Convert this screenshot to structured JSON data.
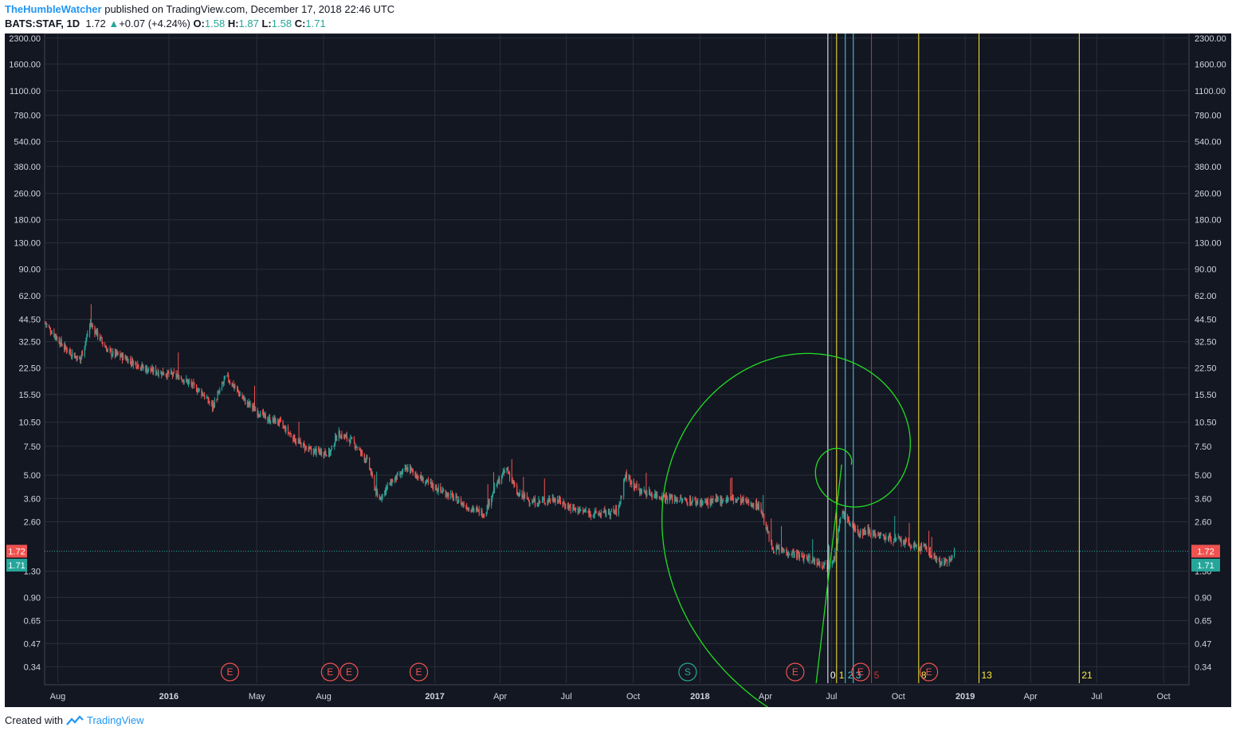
{
  "header": {
    "author": "TheHumbleWatcher",
    "published": "published on TradingView.com, December 17, 2018 22:46 UTC",
    "symbol": "BATS:STAF, 1D",
    "last": "1.72",
    "change": "+0.07 (+4.24%)",
    "o_label": "O:",
    "o_value": "1.58",
    "h_label": "H:",
    "h_value": "1.87",
    "l_label": "L:",
    "l_value": "1.58",
    "c_label": "C:",
    "c_value": "1.71"
  },
  "footer": {
    "created_with": "Created with",
    "brand": "TradingView"
  },
  "colors": {
    "background": "#131722",
    "grid": "#2a2e39",
    "up": "#26a69a",
    "down": "#ef5350",
    "spiral": "#22dd22",
    "fib_white": "#ffffff",
    "fib_yellow": "#ffeb3b",
    "fib_cyan": "#4dd0e1",
    "fib_red": "#d32f2f",
    "axis_text": "#d1d4dc",
    "event": "#ef5350",
    "split": "#26a69a"
  },
  "chart_data": {
    "type": "candlestick",
    "symbol": "BATS:STAF",
    "interval": "1D",
    "y_scale": "log",
    "ylim": [
      0.27,
      2400
    ],
    "y_ticks": [
      "2300.00",
      "1600.00",
      "1100.00",
      "780.00",
      "540.00",
      "380.00",
      "260.00",
      "180.00",
      "130.00",
      "90.00",
      "62.00",
      "44.50",
      "32.50",
      "22.50",
      "15.50",
      "10.50",
      "7.50",
      "5.00",
      "3.60",
      "2.60",
      "1.30",
      "0.90",
      "0.65",
      "0.47",
      "0.34"
    ],
    "x_range": [
      "2015-07-14",
      "2019-11-05"
    ],
    "x_ticks": [
      {
        "label": "Aug",
        "date": "2015-08-01",
        "bold": false
      },
      {
        "label": "2016",
        "date": "2016-01-01",
        "bold": true
      },
      {
        "label": "May",
        "date": "2016-05-01",
        "bold": false
      },
      {
        "label": "Aug",
        "date": "2016-08-01",
        "bold": false
      },
      {
        "label": "2017",
        "date": "2017-01-01",
        "bold": true
      },
      {
        "label": "Apr",
        "date": "2017-04-01",
        "bold": false
      },
      {
        "label": "Jul",
        "date": "2017-07-01",
        "bold": false
      },
      {
        "label": "Oct",
        "date": "2017-10-01",
        "bold": false
      },
      {
        "label": "2018",
        "date": "2018-01-01",
        "bold": true
      },
      {
        "label": "Apr",
        "date": "2018-04-01",
        "bold": false
      },
      {
        "label": "Jul",
        "date": "2018-07-01",
        "bold": false
      },
      {
        "label": "Oct",
        "date": "2018-10-01",
        "bold": false
      },
      {
        "label": "2019",
        "date": "2019-01-01",
        "bold": true
      },
      {
        "label": "Apr",
        "date": "2019-04-01",
        "bold": false
      },
      {
        "label": "Jul",
        "date": "2019-07-01",
        "bold": false
      },
      {
        "label": "Oct",
        "date": "2019-10-01",
        "bold": false
      }
    ],
    "price_path": [
      [
        "2015-07-15",
        42
      ],
      [
        "2015-08-10",
        30
      ],
      [
        "2015-09-01",
        25
      ],
      [
        "2015-09-15",
        42
      ],
      [
        "2015-10-10",
        28
      ],
      [
        "2015-11-01",
        26
      ],
      [
        "2015-12-01",
        22
      ],
      [
        "2016-01-15",
        20
      ],
      [
        "2016-02-15",
        16
      ],
      [
        "2016-03-01",
        13
      ],
      [
        "2016-03-20",
        20
      ],
      [
        "2016-04-15",
        14
      ],
      [
        "2016-05-15",
        11
      ],
      [
        "2016-06-01",
        10.5
      ],
      [
        "2016-06-25",
        8
      ],
      [
        "2016-07-15",
        7
      ],
      [
        "2016-08-10",
        6.8
      ],
      [
        "2016-08-20",
        9
      ],
      [
        "2016-09-10",
        8
      ],
      [
        "2016-10-01",
        6
      ],
      [
        "2016-10-15",
        3.5
      ],
      [
        "2016-11-01",
        4.5
      ],
      [
        "2016-11-25",
        5.5
      ],
      [
        "2016-12-20",
        4.5
      ],
      [
        "2017-01-20",
        3.8
      ],
      [
        "2017-02-15",
        3.2
      ],
      [
        "2017-03-10",
        2.9
      ],
      [
        "2017-03-25",
        4.2
      ],
      [
        "2017-04-10",
        5.5
      ],
      [
        "2017-04-25",
        3.8
      ],
      [
        "2017-05-20",
        3.4
      ],
      [
        "2017-06-15",
        3.6
      ],
      [
        "2017-07-10",
        3.1
      ],
      [
        "2017-08-10",
        2.9
      ],
      [
        "2017-09-10",
        3.0
      ],
      [
        "2017-09-20",
        5.0
      ],
      [
        "2017-10-10",
        4.0
      ],
      [
        "2017-11-10",
        3.7
      ],
      [
        "2017-12-10",
        3.5
      ],
      [
        "2018-01-10",
        3.4
      ],
      [
        "2018-02-10",
        3.6
      ],
      [
        "2018-03-10",
        3.4
      ],
      [
        "2018-03-25",
        3.2
      ],
      [
        "2018-04-10",
        1.8
      ],
      [
        "2018-05-01",
        1.7
      ],
      [
        "2018-05-20",
        1.6
      ],
      [
        "2018-06-10",
        1.5
      ],
      [
        "2018-06-25",
        1.4
      ],
      [
        "2018-07-05",
        1.6
      ],
      [
        "2018-07-15",
        3.0
      ],
      [
        "2018-07-25",
        2.6
      ],
      [
        "2018-08-05",
        2.2
      ],
      [
        "2018-08-20",
        2.3
      ],
      [
        "2018-09-10",
        2.1
      ],
      [
        "2018-10-01",
        2.0
      ],
      [
        "2018-10-20",
        1.85
      ],
      [
        "2018-11-05",
        1.8
      ],
      [
        "2018-11-25",
        1.5
      ],
      [
        "2018-12-05",
        1.45
      ],
      [
        "2018-12-17",
        1.72
      ]
    ],
    "last_price": 1.72,
    "close_price": 1.71,
    "spiral_center": {
      "date": "2018-07-15",
      "price": 5.8
    },
    "fib_time_zones": [
      {
        "label": "0",
        "date": "2018-06-26",
        "color": "#ffffff"
      },
      {
        "label": "1",
        "date": "2018-07-08",
        "color": "#ffeb3b"
      },
      {
        "label": "2",
        "date": "2018-07-20",
        "color": "#4dd0e1"
      },
      {
        "label": "3",
        "date": "2018-07-31",
        "color": "#4dd0e1"
      },
      {
        "label": "5",
        "date": "2018-08-25",
        "color": "#d32f2f"
      },
      {
        "label": "8",
        "date": "2018-10-29",
        "color": "#ffeb3b"
      },
      {
        "label": "13",
        "date": "2019-01-20",
        "color": "#ffeb3b"
      },
      {
        "label": "21",
        "date": "2019-06-07",
        "color": "#ffeb3b"
      }
    ],
    "events": [
      {
        "label": "E",
        "date": "2016-03-25"
      },
      {
        "label": "E",
        "date": "2016-08-10"
      },
      {
        "label": "E",
        "date": "2016-09-05"
      },
      {
        "label": "E",
        "date": "2016-12-10"
      },
      {
        "label": "S",
        "date": "2017-12-15"
      },
      {
        "label": "E",
        "date": "2018-05-12"
      },
      {
        "label": "E",
        "date": "2018-08-10"
      },
      {
        "label": "E",
        "date": "2018-11-12"
      }
    ]
  }
}
